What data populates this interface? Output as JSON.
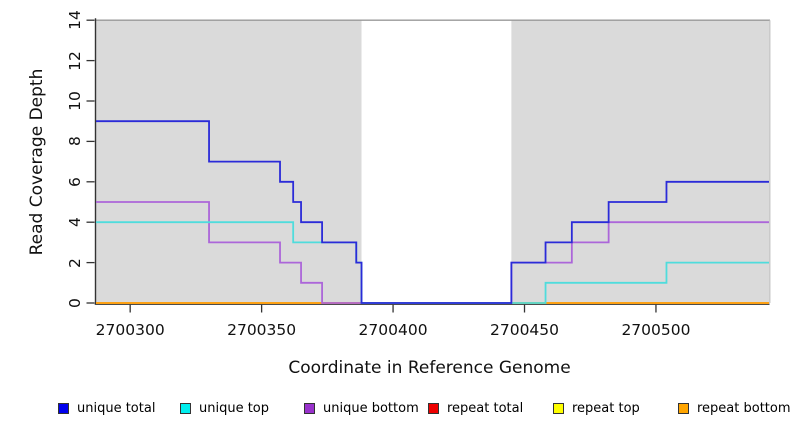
{
  "chart_data": {
    "type": "line",
    "subtype": "step-post",
    "title": "",
    "xlabel": "Coordinate in Reference Genome",
    "ylabel": "Read Coverage Depth",
    "xlim": [
      2700287,
      2700543
    ],
    "ylim": [
      0,
      14
    ],
    "x_ticks": [
      2700300,
      2700350,
      2700400,
      2700450,
      2700500
    ],
    "y_ticks": [
      0,
      2,
      4,
      6,
      8,
      10,
      12,
      14
    ],
    "grid": false,
    "legend_position": "bottom",
    "shaded_regions": [
      [
        2700287,
        2700388
      ],
      [
        2700445,
        2700543
      ]
    ],
    "gap_region": [
      2700388,
      2700445
    ],
    "series": [
      {
        "name": "unique total",
        "color": "#0000EE",
        "line_color": "#2B2BD8",
        "steps": [
          [
            2700287,
            9
          ],
          [
            2700330,
            7
          ],
          [
            2700357,
            6
          ],
          [
            2700362,
            5
          ],
          [
            2700365,
            4
          ],
          [
            2700373,
            3
          ],
          [
            2700386,
            2
          ],
          [
            2700388,
            0
          ],
          [
            2700445,
            2
          ],
          [
            2700458,
            3
          ],
          [
            2700468,
            4
          ],
          [
            2700482,
            5
          ],
          [
            2700504,
            6
          ]
        ]
      },
      {
        "name": "unique top",
        "color": "#00EEEE",
        "line_color": "#4FDCDC",
        "steps": [
          [
            2700287,
            4
          ],
          [
            2700362,
            3
          ],
          [
            2700386,
            2
          ],
          [
            2700388,
            0
          ],
          [
            2700458,
            1
          ],
          [
            2700504,
            2
          ]
        ]
      },
      {
        "name": "unique bottom",
        "color": "#9932CC",
        "line_color": "#AC66D9",
        "steps": [
          [
            2700287,
            5
          ],
          [
            2700330,
            3
          ],
          [
            2700357,
            2
          ],
          [
            2700365,
            1
          ],
          [
            2700373,
            0
          ],
          [
            2700445,
            2
          ],
          [
            2700468,
            3
          ],
          [
            2700482,
            4
          ]
        ]
      },
      {
        "name": "repeat total",
        "color": "#EE0000",
        "line_color": "#E03030",
        "steps": [
          [
            2700287,
            0
          ]
        ]
      },
      {
        "name": "repeat top",
        "color": "#FFFF00",
        "line_color": "#F5E400",
        "steps": [
          [
            2700287,
            0
          ]
        ]
      },
      {
        "name": "repeat bottom",
        "color": "#FFA500",
        "line_color": "#FF9C14",
        "steps": [
          [
            2700287,
            0
          ]
        ]
      }
    ],
    "draw_order": [
      "repeat total",
      "repeat top",
      "repeat bottom",
      "unique bottom",
      "unique top",
      "unique total"
    ]
  },
  "colors": {
    "shade": "#DADADA",
    "axis": "#333333",
    "boundary": "#999999",
    "shade_edge": "#BCBCBC",
    "background": "#FFFFFF"
  }
}
